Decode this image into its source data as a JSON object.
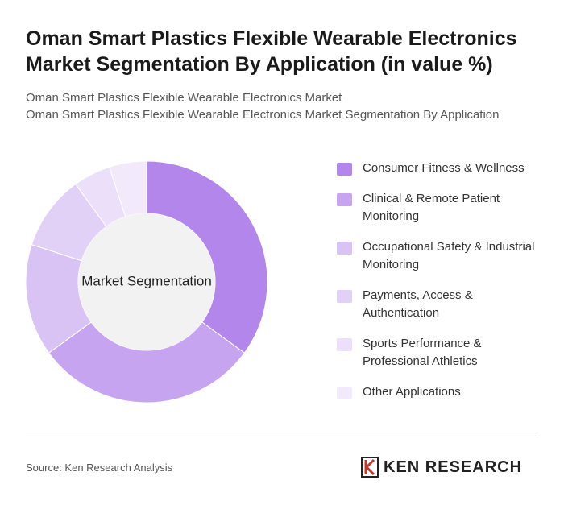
{
  "chart_data": {
    "type": "donut",
    "title": "Oman Smart Plastics Flexible Wearable Electronics Market Segmentation By Application (in value %)",
    "subtitle": [
      "Oman Smart Plastics Flexible Wearable Electronics Market",
      "Oman Smart Plastics Flexible Wearable Electronics Market Segmentation By Application"
    ],
    "center_label": "Market Segmentation",
    "categories": [
      "Consumer Fitness & Wellness",
      "Clinical & Remote Patient Monitoring",
      "Occupational Safety & Industrial Monitoring",
      "Payments, Access & Authentication",
      "Sports Performance & Professional Athletics",
      "Other Applications"
    ],
    "values": [
      35,
      30,
      15,
      10,
      5,
      5
    ],
    "colors": [
      "#b286ea",
      "#c6a4f0",
      "#d9c3f5",
      "#e2d1f7",
      "#ebdff9",
      "#f2eafb"
    ]
  },
  "footer": {
    "source": "Source: Ken Research Analysis",
    "logo": "KEN RESEARCH"
  }
}
